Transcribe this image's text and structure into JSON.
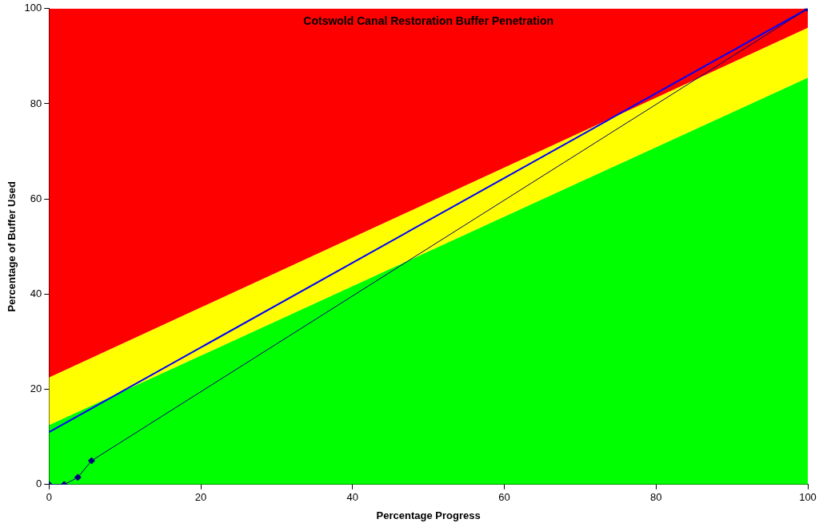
{
  "chart_data": {
    "type": "area",
    "stacked": true,
    "title": "Cotswold Canal Restoration Buffer Penetration",
    "xlabel": "Percentage Progress",
    "ylabel": "Percentage of Buffer Used",
    "xlim": [
      0,
      100
    ],
    "xticks": [
      0,
      20,
      40,
      60,
      80,
      100
    ],
    "ylim": [
      0,
      100
    ],
    "yticks": [
      0,
      20,
      40,
      60,
      80,
      100
    ],
    "grid": false,
    "legend": false,
    "series": [
      {
        "color": "#00ff00",
        "x": [
          0,
          100
        ],
        "values": [
          12.5,
          85.5
        ]
      },
      {
        "color": "#ffff00",
        "x": [
          0,
          100
        ],
        "values": [
          10,
          10.5
        ]
      },
      {
        "color": "#ff0000",
        "x": [
          0,
          100
        ],
        "values": [
          77.5,
          4
        ]
      },
      {
        "type": "line",
        "color": "#0000ff",
        "x": [
          0,
          100
        ],
        "values": [
          11,
          100
        ],
        "marker": "none"
      },
      {
        "type": "line",
        "color": "#000080",
        "x": [
          0,
          2,
          3.8,
          5.6,
          100
        ],
        "values": [
          0,
          0,
          1.5,
          5,
          100
        ],
        "marker": "diamond"
      }
    ]
  }
}
